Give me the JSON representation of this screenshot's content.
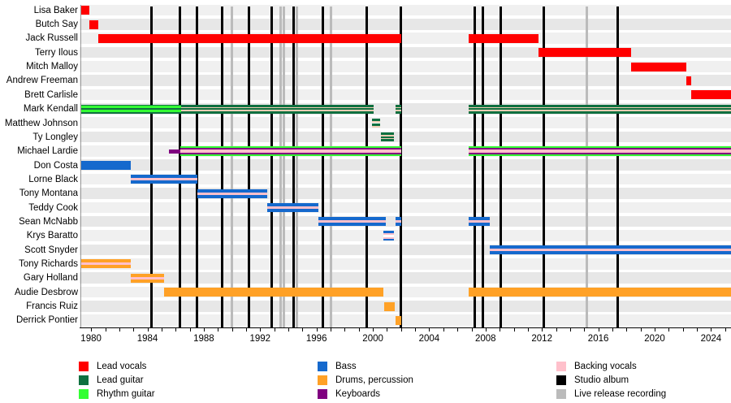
{
  "chart_data": {
    "type": "timeline",
    "description": "Band members timeline chart (roles by color, vertical lines mark releases)",
    "x_axis": {
      "start": 1979.3,
      "end": 2025.42,
      "tick_years": [
        1980,
        1984,
        1988,
        1992,
        1996,
        2000,
        2004,
        2008,
        2012,
        2016,
        2020,
        2024
      ],
      "tick_labels": [
        "1980",
        "1984",
        "1988",
        "1992",
        "1996",
        "2000",
        "2004",
        "2008",
        "2012",
        "2016",
        "2020",
        "2024"
      ],
      "minor_tick_interval": 1
    },
    "palette": {
      "red": "#ff0000",
      "dark_green": "#0f7040",
      "lime": "#33ff33",
      "blue": "#1569cd",
      "orange": "#ffa126",
      "purple": "#800080",
      "pink": "#ffc0cb",
      "tan": "#f0cdb4",
      "white": "#ffffff",
      "black": "#000000",
      "gray": "#bbbbbb",
      "band_a": "#f0f0f0",
      "band_b": "#e7e7e7"
    },
    "bar_styles": {
      "vocals": {
        "h": 11,
        "stripes": [
          [
            "red",
            1
          ]
        ]
      },
      "guitar_rhythm": {
        "h": 11,
        "stripes": [
          [
            "dark_green",
            1
          ],
          [
            "lime",
            2
          ],
          [
            "dark_green",
            1
          ],
          [
            "lime",
            2
          ],
          [
            "dark_green",
            1
          ]
        ]
      },
      "guitar_bv": {
        "h": 11,
        "stripes": [
          [
            "dark_green",
            2
          ],
          [
            "tan",
            1
          ],
          [
            "dark_green",
            1.2
          ],
          [
            "tan",
            1
          ],
          [
            "dark_green",
            2
          ]
        ]
      },
      "guitar_2lane": {
        "h": 11,
        "stripes": [
          [
            "dark_green",
            1.6
          ],
          [
            "tan",
            0.8
          ],
          [
            "white",
            1
          ],
          [
            "dark_green",
            1.6
          ],
          [
            "tan",
            0.8
          ]
        ]
      },
      "keys_only": {
        "h": 5,
        "stripes": [
          [
            "purple",
            1
          ]
        ]
      },
      "guitar_keys_bv": {
        "h": 12,
        "stripes": [
          [
            "lime",
            1
          ],
          [
            "purple",
            1
          ],
          [
            "pink",
            1.6
          ],
          [
            "purple",
            1
          ],
          [
            "lime",
            1
          ]
        ]
      },
      "bass": {
        "h": 11,
        "stripes": [
          [
            "blue",
            1
          ]
        ]
      },
      "bass_bv": {
        "h": 11,
        "stripes": [
          [
            "blue",
            1.3
          ],
          [
            "pink",
            1
          ],
          [
            "blue",
            1.3
          ]
        ]
      },
      "bass_bv_2lane": {
        "h": 12,
        "stripes": [
          [
            "blue",
            1
          ],
          [
            "pink",
            0.8
          ],
          [
            "white",
            1
          ],
          [
            "pink",
            0.8
          ],
          [
            "blue",
            1
          ]
        ]
      },
      "drums": {
        "h": 11,
        "stripes": [
          [
            "orange",
            1
          ]
        ]
      },
      "drums_bv": {
        "h": 11,
        "stripes": [
          [
            "orange",
            1.3
          ],
          [
            "pink",
            1
          ],
          [
            "orange",
            1.3
          ]
        ]
      }
    },
    "members": [
      {
        "name": "Lisa Baker",
        "segments": [
          {
            "start": 1979.3,
            "end": 1979.9,
            "style": "vocals"
          }
        ]
      },
      {
        "name": "Butch Say",
        "segments": [
          {
            "start": 1979.9,
            "end": 1980.5,
            "style": "vocals"
          }
        ]
      },
      {
        "name": "Jack Russell",
        "segments": [
          {
            "start": 1980.5,
            "end": 2002.0,
            "style": "vocals"
          },
          {
            "start": 2006.8,
            "end": 2011.75,
            "style": "vocals"
          }
        ]
      },
      {
        "name": "Terry Ilous",
        "segments": [
          {
            "start": 2011.75,
            "end": 2018.35,
            "style": "vocals"
          }
        ]
      },
      {
        "name": "Mitch Malloy",
        "segments": [
          {
            "start": 2018.35,
            "end": 2022.25,
            "style": "vocals"
          }
        ]
      },
      {
        "name": "Andrew Freeman",
        "segments": [
          {
            "start": 2022.25,
            "end": 2022.6,
            "style": "vocals"
          }
        ]
      },
      {
        "name": "Brett Carlisle",
        "segments": [
          {
            "start": 2022.6,
            "end": 2025.42,
            "style": "vocals"
          }
        ]
      },
      {
        "name": "Mark Kendall",
        "segments": [
          {
            "start": 1979.3,
            "end": 1986.4,
            "style": "guitar_rhythm"
          },
          {
            "start": 1986.4,
            "end": 2000.05,
            "style": "guitar_bv"
          },
          {
            "start": 2001.6,
            "end": 2002.0,
            "style": "guitar_bv"
          },
          {
            "start": 2006.8,
            "end": 2025.42,
            "style": "guitar_bv"
          }
        ]
      },
      {
        "name": "Matthew Johnson",
        "segments": [
          {
            "start": 1999.95,
            "end": 2000.5,
            "style": "guitar_2lane"
          }
        ]
      },
      {
        "name": "Ty Longley",
        "segments": [
          {
            "start": 2000.55,
            "end": 2001.5,
            "style": "guitar_bv"
          }
        ]
      },
      {
        "name": "Michael Lardie",
        "segments": [
          {
            "start": 1985.5,
            "end": 1986.35,
            "style": "keys_only"
          },
          {
            "start": 1986.35,
            "end": 2002.0,
            "style": "guitar_keys_bv"
          },
          {
            "start": 2006.8,
            "end": 2025.42,
            "style": "guitar_keys_bv"
          }
        ]
      },
      {
        "name": "Don Costa",
        "segments": [
          {
            "start": 1979.3,
            "end": 1982.8,
            "style": "bass"
          }
        ]
      },
      {
        "name": "Lorne Black",
        "segments": [
          {
            "start": 1982.8,
            "end": 1987.55,
            "style": "bass_bv"
          }
        ]
      },
      {
        "name": "Tony Montana",
        "segments": [
          {
            "start": 1987.55,
            "end": 1992.5,
            "style": "bass_bv"
          }
        ]
      },
      {
        "name": "Teddy Cook",
        "segments": [
          {
            "start": 1992.5,
            "end": 1996.15,
            "style": "bass_bv"
          }
        ]
      },
      {
        "name": "Sean McNabb",
        "segments": [
          {
            "start": 1996.15,
            "end": 2000.9,
            "style": "bass_bv"
          },
          {
            "start": 2001.6,
            "end": 2002.0,
            "style": "bass_bv"
          },
          {
            "start": 2006.8,
            "end": 2008.3,
            "style": "bass_bv"
          }
        ]
      },
      {
        "name": "Krys Baratto",
        "segments": [
          {
            "start": 2000.75,
            "end": 2001.5,
            "style": "bass_bv_2lane"
          }
        ]
      },
      {
        "name": "Scott Snyder",
        "segments": [
          {
            "start": 2008.3,
            "end": 2025.42,
            "style": "bass_bv"
          }
        ]
      },
      {
        "name": "Tony Richards",
        "segments": [
          {
            "start": 1979.3,
            "end": 1982.8,
            "style": "drums_bv"
          }
        ]
      },
      {
        "name": "Gary Holland",
        "segments": [
          {
            "start": 1982.8,
            "end": 1985.2,
            "style": "drums_bv"
          }
        ]
      },
      {
        "name": "Audie Desbrow",
        "segments": [
          {
            "start": 1985.2,
            "end": 2000.75,
            "style": "drums"
          },
          {
            "start": 2006.8,
            "end": 2025.42,
            "style": "drums"
          }
        ]
      },
      {
        "name": "Francis Ruiz",
        "segments": [
          {
            "start": 2000.8,
            "end": 2001.55,
            "style": "drums"
          }
        ]
      },
      {
        "name": "Derrick Pontier",
        "segments": [
          {
            "start": 2001.6,
            "end": 2002.0,
            "style": "drums"
          }
        ]
      }
    ],
    "studio_albums": [
      1984.3,
      1986.3,
      1987.5,
      1989.3,
      1991.2,
      1992.8,
      1994.35,
      1996.45,
      1999.55,
      2002.0,
      2007.2,
      2007.8,
      2009.1,
      2012.15,
      2017.35
    ],
    "live_releases": [
      1990.0,
      1993.45,
      1993.7,
      1994.6,
      1997.0,
      2015.2
    ]
  },
  "legend": {
    "columns": [
      {
        "items": [
          {
            "label": "Lead vocals",
            "color": "red"
          },
          {
            "label": "Lead guitar",
            "color": "dark_green"
          },
          {
            "label": "Rhythm guitar",
            "color": "lime"
          }
        ]
      },
      {
        "items": [
          {
            "label": "Bass",
            "color": "blue"
          },
          {
            "label": "Drums, percussion",
            "color": "orange"
          },
          {
            "label": "Keyboards",
            "color": "purple"
          }
        ]
      },
      {
        "items": [
          {
            "label": "Backing vocals",
            "color": "pink"
          },
          {
            "label": "Studio album",
            "color": "black"
          },
          {
            "label": "Live release recording",
            "color": "gray"
          }
        ]
      }
    ]
  }
}
